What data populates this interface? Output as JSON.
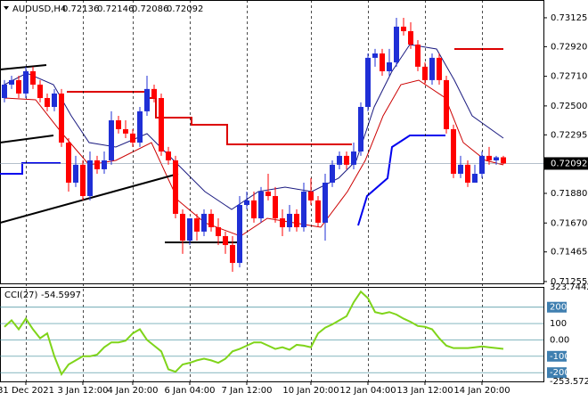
{
  "chart_data": {
    "type": "candlestick",
    "title": "AUDUSD,H4",
    "up_color": "#1f2fd6",
    "down_color": "#ff0000",
    "categories": [
      null,
      null,
      null,
      "31 Dec 2021",
      null,
      null,
      null,
      null,
      null,
      null,
      null,
      "3 Jan 12:00",
      null,
      null,
      null,
      null,
      null,
      null,
      "4 Jan 20:00",
      null,
      null,
      null,
      null,
      null,
      null,
      null,
      "6 Jan 04:00",
      null,
      null,
      null,
      null,
      null,
      null,
      null,
      "7 Jan 12:00",
      null,
      null,
      null,
      null,
      null,
      null,
      null,
      null,
      "10 Jan 20:00",
      null,
      null,
      null,
      null,
      null,
      null,
      null,
      "12 Jan 04:00",
      null,
      null,
      null,
      null,
      null,
      null,
      null,
      "13 Jan 12:00",
      null,
      null,
      null,
      null,
      null,
      null,
      null,
      "14 Jan 20:00",
      null,
      null,
      null
    ],
    "open": [
      0.72556,
      0.72651,
      0.72683,
      0.72588,
      0.72746,
      0.72651,
      0.72556,
      0.72493,
      0.72588,
      0.7224,
      0.71956,
      0.72083,
      0.71861,
      0.72114,
      0.72051,
      0.72114,
      0.72398,
      0.72335,
      0.72304,
      0.7224,
      0.72462,
      0.7262,
      0.72556,
      0.72177,
      0.72114,
      0.71735,
      0.71545,
      0.71703,
      0.71609,
      0.71735,
      0.7164,
      0.71577,
      0.71514,
      0.71387,
      0.71798,
      0.7183,
      0.71703,
      0.71893,
      0.71861,
      0.71703,
      0.7164,
      0.71735,
      0.7164,
      0.71893,
      0.7183,
      0.71672,
      0.71956,
      0.72083,
      0.72146,
      0.72083,
      0.72177,
      0.72493,
      0.72841,
      0.72872,
      0.72746,
      0.72809,
      0.73062,
      0.7303,
      0.72935,
      0.72778,
      0.72683,
      0.72841,
      0.72683,
      0.72335,
      0.72019,
      0.72083,
      0.71956,
      0.72019,
      0.72146,
      0.72114,
      0.72136
    ],
    "high": [
      0.72683,
      0.72714,
      0.72714,
      0.72778,
      0.72778,
      0.72683,
      0.72588,
      0.7262,
      0.7262,
      0.72272,
      0.72146,
      0.72114,
      0.72177,
      0.72146,
      0.72177,
      0.72462,
      0.7243,
      0.72398,
      0.72335,
      0.72493,
      0.72714,
      0.72651,
      0.72588,
      0.72209,
      0.72146,
      0.71767,
      0.71703,
      0.71735,
      0.71767,
      0.71767,
      0.71703,
      0.71609,
      0.71577,
      0.71861,
      0.71893,
      0.71893,
      0.71925,
      0.72019,
      0.71925,
      0.71767,
      0.71798,
      0.71767,
      0.71956,
      0.71988,
      0.71861,
      0.72019,
      0.72114,
      0.72177,
      0.72177,
      0.7224,
      0.72525,
      0.72872,
      0.72904,
      0.72904,
      0.72904,
      0.73125,
      0.73125,
      0.73093,
      0.72967,
      0.72809,
      0.72872,
      0.72872,
      0.72714,
      0.72367,
      0.72146,
      0.72114,
      0.72083,
      0.72177,
      0.72209,
      0.72146,
      0.72146
    ],
    "low": [
      0.72525,
      0.7262,
      0.72556,
      0.72556,
      0.7262,
      0.72525,
      0.72462,
      0.72462,
      0.72209,
      0.71893,
      0.71925,
      0.7183,
      0.7183,
      0.72019,
      0.72019,
      0.72083,
      0.72304,
      0.72272,
      0.72209,
      0.72209,
      0.7243,
      0.72525,
      0.72146,
      0.72083,
      0.71703,
      0.71451,
      0.71514,
      0.71545,
      0.71577,
      0.71609,
      0.71514,
      0.71451,
      0.71324,
      0.71356,
      0.71767,
      0.71672,
      0.71672,
      0.7183,
      0.71672,
      0.71577,
      0.71609,
      0.71609,
      0.71609,
      0.71798,
      0.7164,
      0.71545,
      0.71925,
      0.72051,
      0.72051,
      0.72051,
      0.72146,
      0.72462,
      0.72778,
      0.72714,
      0.72714,
      0.72778,
      0.72999,
      0.72904,
      0.72746,
      0.72651,
      0.72651,
      0.72651,
      0.72304,
      0.71988,
      0.71988,
      0.71925,
      0.71956,
      0.71988,
      0.72083,
      0.72083,
      0.72086
    ],
    "close": [
      0.72651,
      0.72683,
      0.72588,
      0.72746,
      0.72651,
      0.72556,
      0.72493,
      0.72588,
      0.7224,
      0.71956,
      0.72083,
      0.71861,
      0.72114,
      0.72051,
      0.72114,
      0.72398,
      0.72335,
      0.72304,
      0.7224,
      0.72462,
      0.7262,
      0.72556,
      0.72177,
      0.72114,
      0.71735,
      0.71545,
      0.71703,
      0.71609,
      0.71735,
      0.7164,
      0.71577,
      0.71514,
      0.71387,
      0.71798,
      0.7183,
      0.71703,
      0.71893,
      0.71861,
      0.71703,
      0.7164,
      0.71735,
      0.7164,
      0.71893,
      0.7183,
      0.71672,
      0.71956,
      0.72083,
      0.72146,
      0.72083,
      0.72177,
      0.72493,
      0.72841,
      0.72872,
      0.72746,
      0.72809,
      0.73062,
      0.7303,
      0.72935,
      0.72778,
      0.72683,
      0.72841,
      0.72683,
      0.72335,
      0.72019,
      0.72083,
      0.71956,
      0.72019,
      0.72146,
      0.72114,
      0.72136,
      0.72092
    ],
    "ylim": [
      0.71242,
      0.73251
    ],
    "yticks": [
      0.73125,
      {
        "value": 0.7292,
        "label": "0.72920"
      },
      {
        "value": 0.7271,
        "label": "0.72710"
      },
      {
        "value": 0.725,
        "label": "0.72500"
      },
      0.72295,
      {
        "value": 0.7188,
        "label": "0.71880"
      },
      {
        "value": 0.7167,
        "label": "0.71670"
      },
      0.71465,
      0.71255
    ],
    "indicator": {
      "type": "line",
      "name": "CCI(27)",
      "color": "#7fd41a",
      "values": [
        80,
        120,
        65,
        130,
        65,
        10,
        40,
        -100,
        -210,
        -150,
        -125,
        -100,
        -100,
        -90,
        -45,
        -15,
        -15,
        -5,
        40,
        65,
        0,
        -35,
        -70,
        -180,
        -195,
        -150,
        -140,
        -125,
        -115,
        -125,
        -140,
        -115,
        -70,
        -55,
        -35,
        -15,
        -15,
        -35,
        -55,
        -45,
        -60,
        -30,
        -35,
        -45,
        40,
        75,
        95,
        120,
        145,
        230,
        295,
        255,
        170,
        160,
        170,
        155,
        130,
        110,
        85,
        80,
        65,
        10,
        -35,
        -50,
        -50,
        -50,
        -45,
        -40,
        -45,
        -50,
        -54.5997
      ],
      "ylim": [
        -253.5723,
        323.7442
      ],
      "yticks": [
        323.7442,
        200,
        100,
        {
          "value": 0,
          "label": "0.00"
        },
        -100,
        -200,
        -253.5723
      ]
    }
  }
}
